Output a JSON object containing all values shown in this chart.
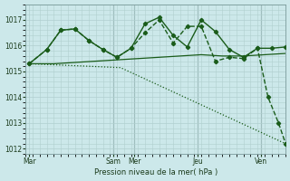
{
  "background_color": "#cce8ea",
  "grid_color": "#b0cfcf",
  "line_color": "#1a5c1a",
  "xlabel": "Pression niveau de la mer( hPa )",
  "ylim": [
    1011.8,
    1017.6
  ],
  "yticks": [
    1012,
    1013,
    1014,
    1015,
    1016,
    1017
  ],
  "xlim": [
    0,
    37
  ],
  "day_labels": [
    "Mar",
    "Sam",
    "Mer",
    "Jeu",
    "Ven"
  ],
  "day_positions": [
    0.5,
    12.5,
    15.5,
    24.5,
    33.5
  ],
  "vline_positions": [
    12.5,
    15.5,
    24.5,
    33.5
  ],
  "lines": [
    {
      "x": [
        0.5,
        13.5,
        37
      ],
      "y": [
        1015.3,
        1015.15,
        1012.2
      ],
      "marker": null,
      "linestyle": "dotted",
      "linewidth": 0.9
    },
    {
      "x": [
        0.5,
        4,
        7,
        10,
        13,
        16,
        19,
        22,
        25,
        28,
        31,
        34,
        37
      ],
      "y": [
        1015.3,
        1015.3,
        1015.35,
        1015.4,
        1015.45,
        1015.5,
        1015.55,
        1015.6,
        1015.65,
        1015.6,
        1015.6,
        1015.65,
        1015.7
      ],
      "marker": null,
      "linestyle": "solid",
      "linewidth": 0.9
    },
    {
      "x": [
        0.5,
        3,
        5,
        7,
        9,
        11,
        13,
        15,
        17,
        19,
        21,
        23,
        25,
        27,
        29,
        31,
        33,
        35,
        37
      ],
      "y": [
        1015.3,
        1015.85,
        1016.6,
        1016.65,
        1016.2,
        1015.85,
        1015.55,
        1015.9,
        1016.85,
        1017.1,
        1016.4,
        1015.95,
        1017.0,
        1016.55,
        1015.85,
        1015.55,
        1015.9,
        1015.9,
        1015.95
      ],
      "marker": "D",
      "linestyle": "solid",
      "linewidth": 1.0
    },
    {
      "x": [
        0.5,
        3,
        5,
        7,
        9,
        11,
        13,
        15,
        17,
        19,
        21,
        23,
        25,
        27,
        29,
        31,
        33,
        34.5,
        36,
        37
      ],
      "y": [
        1015.3,
        1015.85,
        1016.6,
        1016.65,
        1016.2,
        1015.85,
        1015.55,
        1015.9,
        1016.5,
        1017.0,
        1016.1,
        1016.75,
        1016.75,
        1015.4,
        1015.55,
        1015.5,
        1015.9,
        1014.0,
        1013.0,
        1012.2
      ],
      "marker": "D",
      "linestyle": "dashed",
      "linewidth": 1.0
    }
  ]
}
